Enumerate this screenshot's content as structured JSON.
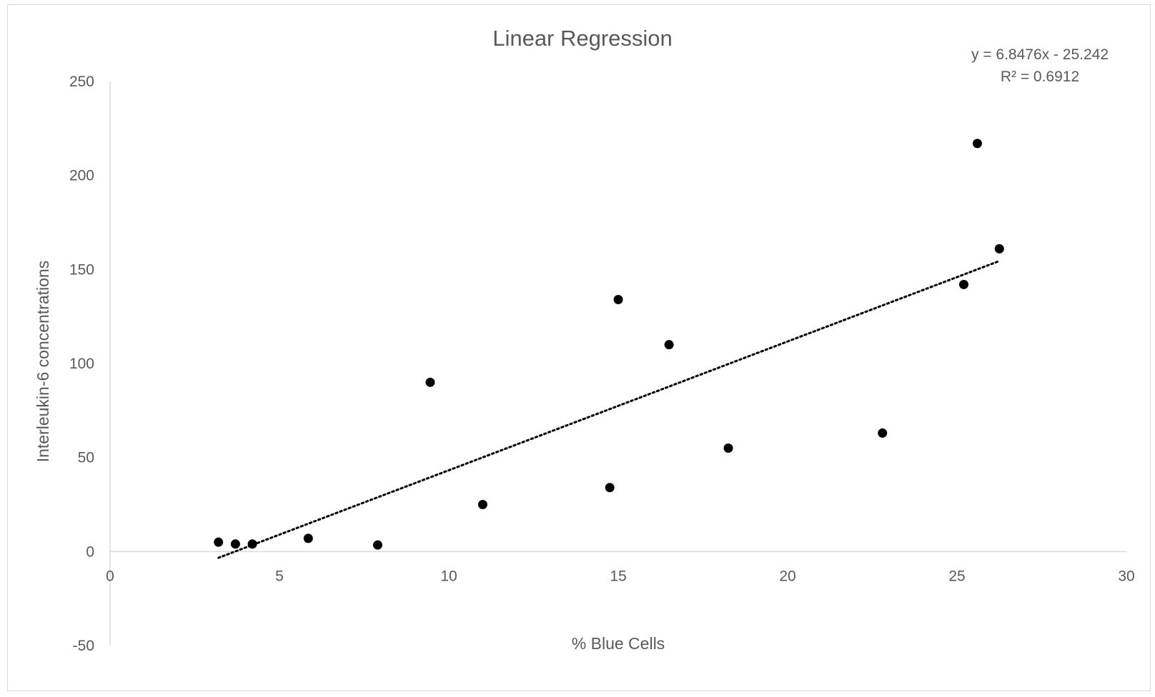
{
  "chart_data": {
    "type": "scatter",
    "title": "Linear Regression",
    "xlabel": "% Blue Cells",
    "ylabel": "Interleukin-6 concentrations",
    "xlim": [
      0,
      30
    ],
    "ylim": [
      -50,
      250
    ],
    "x_ticks": [
      "0",
      "5",
      "10",
      "15",
      "20",
      "25",
      "30"
    ],
    "y_ticks": [
      "-50",
      "0",
      "50",
      "100",
      "150",
      "200",
      "250"
    ],
    "grid": false,
    "legend": "none",
    "marker_color": "#000000",
    "series": [
      {
        "points": [
          {
            "x": 3.2,
            "y": 5
          },
          {
            "x": 3.7,
            "y": 4
          },
          {
            "x": 4.2,
            "y": 4
          },
          {
            "x": 5.85,
            "y": 7
          },
          {
            "x": 7.9,
            "y": 3.5
          },
          {
            "x": 9.45,
            "y": 90
          },
          {
            "x": 11.0,
            "y": 25
          },
          {
            "x": 14.75,
            "y": 34
          },
          {
            "x": 15.0,
            "y": 134
          },
          {
            "x": 16.5,
            "y": 110
          },
          {
            "x": 18.25,
            "y": 55
          },
          {
            "x": 22.8,
            "y": 63
          },
          {
            "x": 25.2,
            "y": 142
          },
          {
            "x": 25.6,
            "y": 217
          },
          {
            "x": 26.25,
            "y": 161
          }
        ]
      }
    ],
    "trendline": {
      "type": "linear",
      "style": "dotted",
      "slope": 6.8476,
      "intercept": -25.242,
      "x_range": [
        3.2,
        26.25
      ],
      "equation_text": "y = 6.8476x - 25.242",
      "r2_text": "R² = 0.6912"
    }
  }
}
